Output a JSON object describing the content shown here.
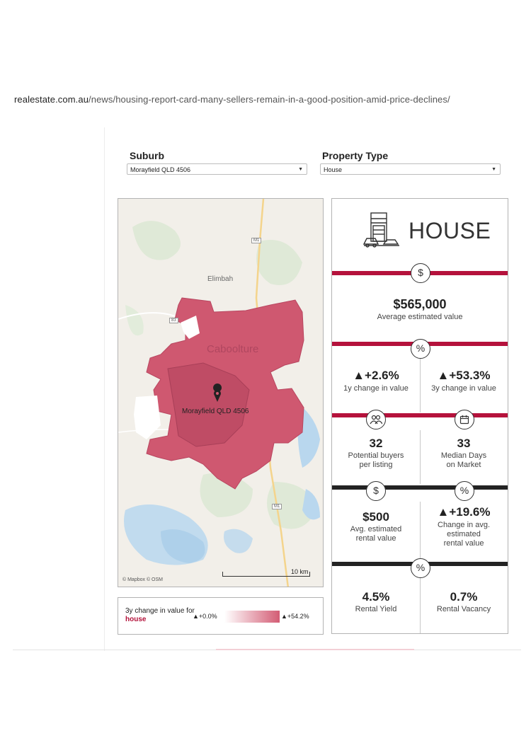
{
  "url": {
    "host": "realestate.com.au",
    "path": "/news/housing-report-card-many-sellers-remain-in-a-good-position-amid-price-declines/"
  },
  "filters": {
    "suburb_label": "Suburb",
    "suburb_value": "Morayfield QLD 4506",
    "property_type_label": "Property Type",
    "property_type_value": "House"
  },
  "map": {
    "place_labels": [
      "Elimbah",
      "Caboolture"
    ],
    "road_labels": [
      "M1",
      "83",
      "M1"
    ],
    "selected_suburb_label": "Morayfield QLD 4506",
    "attribution": "© Mapbox © OSM",
    "scale_label": "10 km"
  },
  "legend": {
    "title_prefix": "3y change in value for",
    "title_highlight": "house",
    "min_label": "▲+0.0%",
    "max_label": "▲+54.2%",
    "gradient_from": "#ffffff",
    "gradient_to": "#d35c74"
  },
  "card": {
    "title": "HOUSE",
    "average_value": "$565,000",
    "average_label": "Average estimated value",
    "change_1y": "▲+2.6%",
    "change_1y_label": "1y change in value",
    "change_3y": "▲+53.3%",
    "change_3y_label": "3y change in value",
    "buyers": "32",
    "buyers_label_line1": "Potential buyers",
    "buyers_label_line2": "per listing",
    "days": "33",
    "days_label_line1": "Median Days",
    "days_label_line2": "on Market",
    "rent": "$500",
    "rent_label_line1": "Avg. estimated",
    "rent_label_line2": "rental value",
    "rent_change": "▲+19.6%",
    "rent_change_label_line1": "Change in avg.",
    "rent_change_label_line2": "estimated",
    "rent_change_label_line3": "rental value",
    "yield": "4.5%",
    "yield_label": "Rental Yield",
    "vacancy": "0.7%",
    "vacancy_label": "Rental Vacancy",
    "badges": {
      "dollar": "$",
      "percent": "%"
    }
  },
  "colors": {
    "brand_red": "#b5123c",
    "dark_bar": "#232323",
    "suburb_fill": "#cf5870"
  }
}
